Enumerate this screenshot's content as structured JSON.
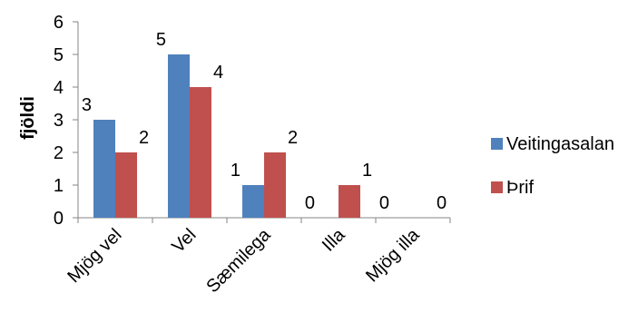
{
  "chart_data": {
    "type": "bar",
    "ylabel": "fjöldi",
    "ylim": [
      0,
      6
    ],
    "yticks": [
      "0",
      "1",
      "2",
      "3",
      "4",
      "5",
      "6"
    ],
    "categories": [
      "Mjög vel",
      "Vel",
      "Sæmilega",
      "Illa",
      "Mjög illa"
    ],
    "series": [
      {
        "name": "Veitingasalan",
        "values": [
          3,
          5,
          1,
          0,
          0
        ],
        "color": "#4F81BD"
      },
      {
        "name": "Þrif",
        "values": [
          2,
          4,
          2,
          1,
          0
        ],
        "color": "#C0504D"
      }
    ],
    "grid": false,
    "legend_position": "right"
  }
}
